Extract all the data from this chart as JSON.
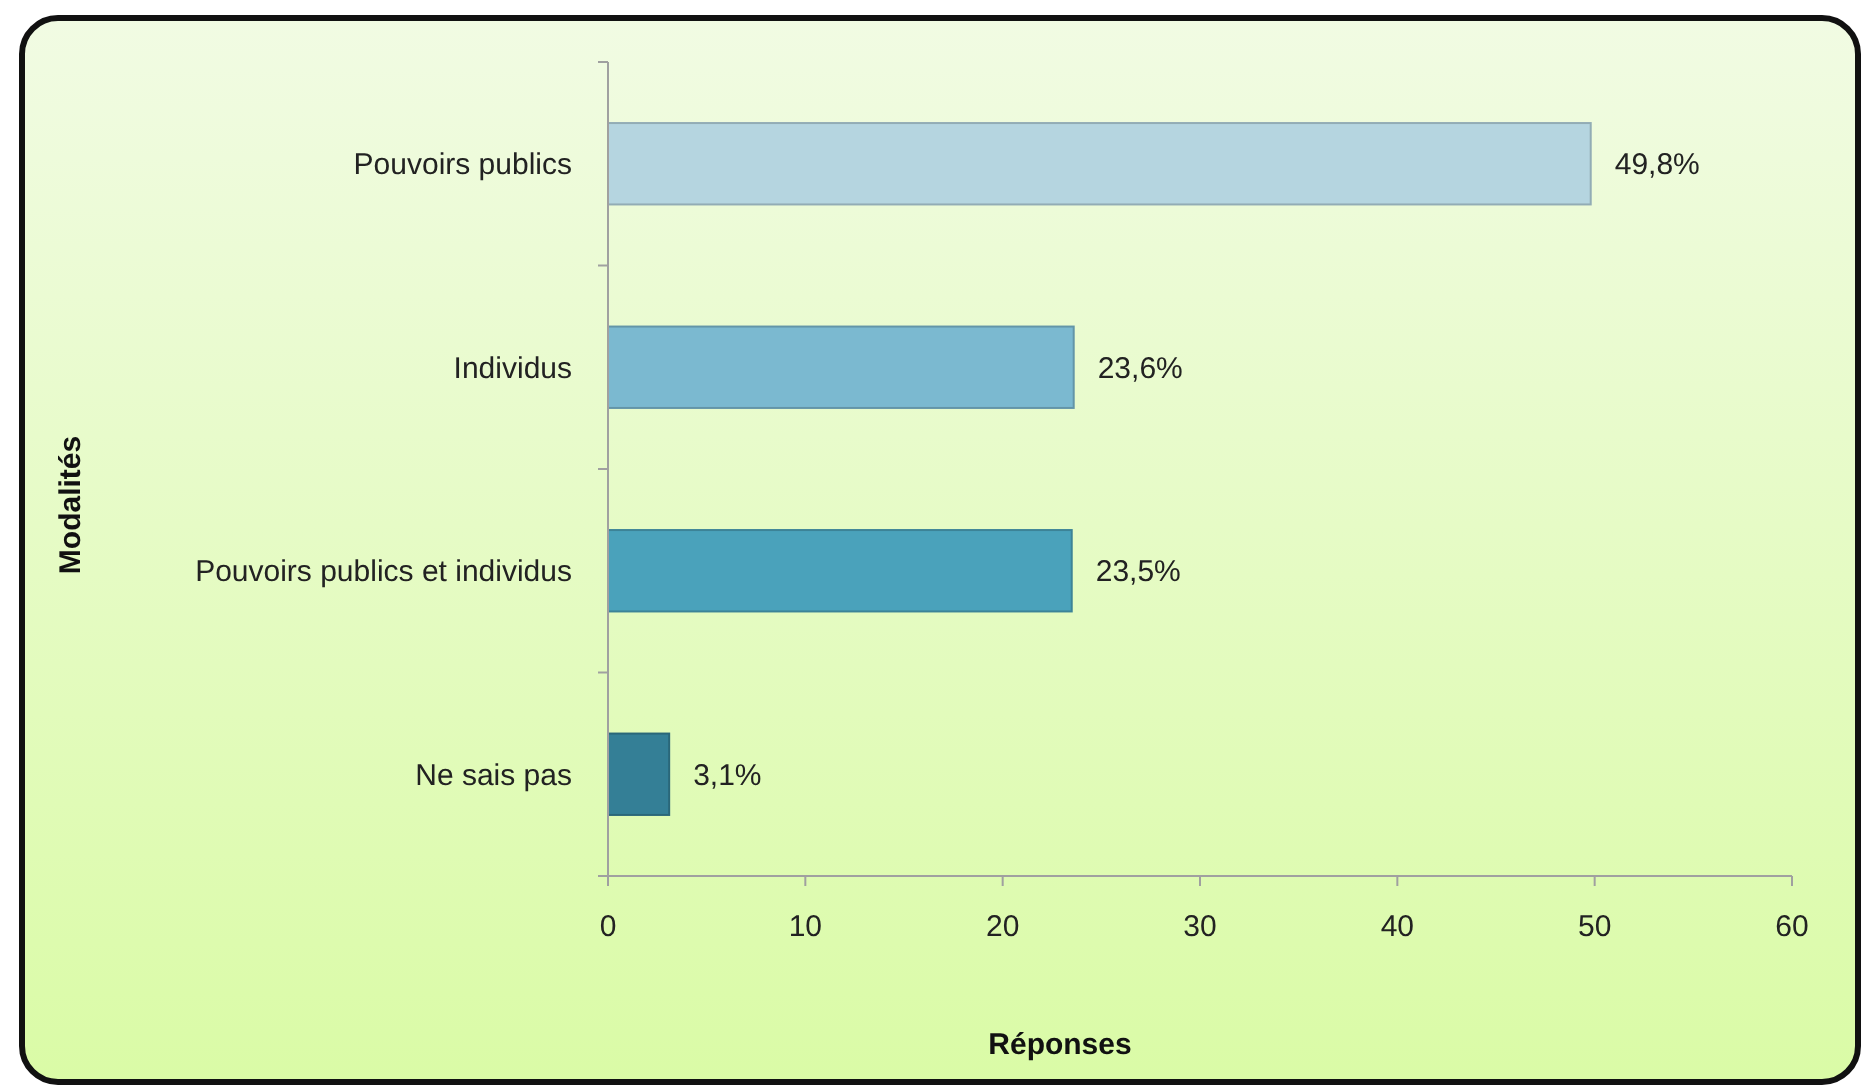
{
  "chart_data": {
    "type": "bar",
    "orientation": "horizontal",
    "xlabel": "Réponses",
    "ylabel": "Modalités",
    "categories": [
      "Pouvoirs publics",
      "Individus",
      "Pouvoirs publics et individus",
      "Ne sais pas"
    ],
    "values": [
      49.8,
      23.6,
      23.5,
      3.1
    ],
    "colors": [
      "#b5d5e0",
      "#7bb9d0",
      "#4aa2bb",
      "#347f96"
    ],
    "value_labels": [
      "49,8%",
      "23,6%",
      "23,5%",
      "3,1%"
    ],
    "xlim": [
      0,
      60
    ],
    "xticks": [
      0,
      10,
      20,
      30,
      40,
      50,
      60
    ],
    "grid": false
  }
}
